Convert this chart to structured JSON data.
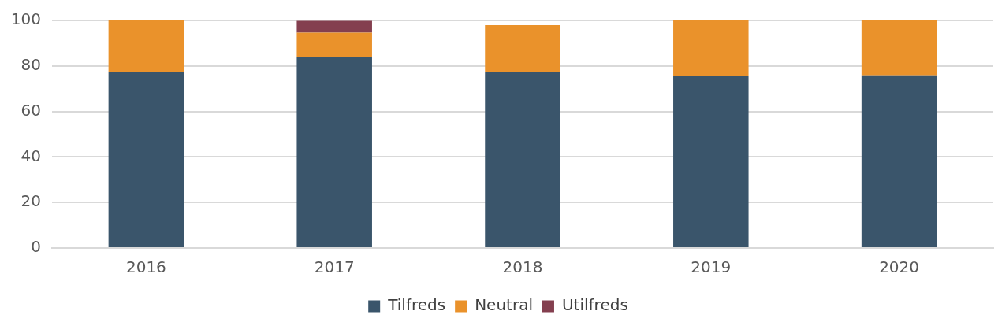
{
  "chart_data": {
    "type": "bar",
    "stacked": true,
    "categories": [
      "2016",
      "2017",
      "2018",
      "2019",
      "2020"
    ],
    "series": [
      {
        "name": "Tilfreds",
        "color": "#3a556b",
        "values": [
          77.4,
          84,
          77.4,
          75.4,
          75.9
        ]
      },
      {
        "name": "Neutral",
        "color": "#ea922b",
        "values": [
          22.6,
          10.6,
          20.5,
          24.6,
          24.1
        ]
      },
      {
        "name": "Utilfreds",
        "color": "#843f4f",
        "values": [
          0,
          5.2,
          0,
          0,
          0
        ]
      }
    ],
    "ylim": [
      0,
      100
    ],
    "yticks": [
      0,
      20,
      40,
      60,
      80,
      100
    ],
    "grid": "y",
    "legend": "bottom"
  }
}
